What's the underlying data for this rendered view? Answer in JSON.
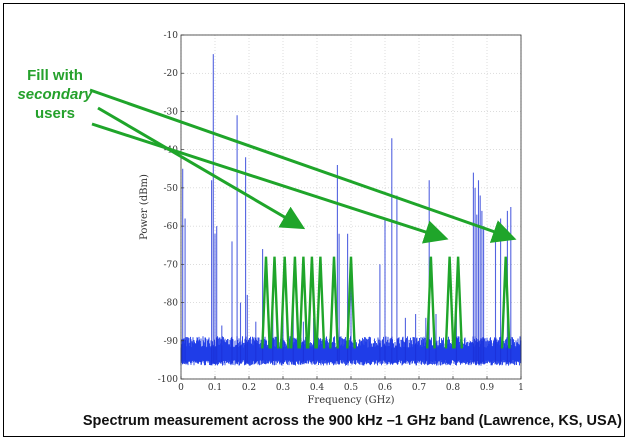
{
  "annotation": {
    "line1": "Fill with",
    "line2": "secondary",
    "line3": "users"
  },
  "caption": "Spectrum measurement across the 900 kHz –1 GHz band  (Lawrence, KS, USA)",
  "colors": {
    "spectrum": "#1a2fd6",
    "noise_floor": "#1f3de8",
    "secondary_users": "#1fa52a",
    "annotation": "#25a12c",
    "axis": "#333333"
  },
  "chart_data": {
    "type": "line",
    "title": "",
    "xlabel": "Frequency (GHz)",
    "ylabel": "Power (dBm)",
    "xlim": [
      0,
      1
    ],
    "ylim": [
      -100,
      -10
    ],
    "xticks": [
      0,
      0.1,
      0.2,
      0.3,
      0.4,
      0.5,
      0.6,
      0.7,
      0.8,
      0.9,
      1
    ],
    "yticks": [
      -10,
      -20,
      -30,
      -40,
      -50,
      -60,
      -70,
      -80,
      -90,
      -100
    ],
    "grid": true,
    "series": [
      {
        "role": "measured_spectrum_peaks",
        "peaks": [
          {
            "x": 0.005,
            "y": -45
          },
          {
            "x": 0.012,
            "y": -58
          },
          {
            "x": 0.09,
            "y": -48
          },
          {
            "x": 0.095,
            "y": -15
          },
          {
            "x": 0.1,
            "y": -62
          },
          {
            "x": 0.105,
            "y": -60
          },
          {
            "x": 0.12,
            "y": -86
          },
          {
            "x": 0.15,
            "y": -64
          },
          {
            "x": 0.165,
            "y": -31
          },
          {
            "x": 0.175,
            "y": -80
          },
          {
            "x": 0.19,
            "y": -42
          },
          {
            "x": 0.195,
            "y": -78
          },
          {
            "x": 0.22,
            "y": -85
          },
          {
            "x": 0.24,
            "y": -66
          },
          {
            "x": 0.27,
            "y": -82
          },
          {
            "x": 0.3,
            "y": -78
          },
          {
            "x": 0.33,
            "y": -76
          },
          {
            "x": 0.36,
            "y": -85
          },
          {
            "x": 0.39,
            "y": -84
          },
          {
            "x": 0.46,
            "y": -44
          },
          {
            "x": 0.465,
            "y": -62
          },
          {
            "x": 0.49,
            "y": -62
          },
          {
            "x": 0.5,
            "y": -70
          },
          {
            "x": 0.585,
            "y": -70
          },
          {
            "x": 0.6,
            "y": -58
          },
          {
            "x": 0.62,
            "y": -37
          },
          {
            "x": 0.635,
            "y": -52
          },
          {
            "x": 0.66,
            "y": -84
          },
          {
            "x": 0.69,
            "y": -83
          },
          {
            "x": 0.72,
            "y": -84
          },
          {
            "x": 0.73,
            "y": -48
          },
          {
            "x": 0.75,
            "y": -83
          },
          {
            "x": 0.81,
            "y": -82
          },
          {
            "x": 0.86,
            "y": -46
          },
          {
            "x": 0.865,
            "y": -50
          },
          {
            "x": 0.87,
            "y": -57
          },
          {
            "x": 0.875,
            "y": -48
          },
          {
            "x": 0.88,
            "y": -52
          },
          {
            "x": 0.885,
            "y": -56
          },
          {
            "x": 0.89,
            "y": -60
          },
          {
            "x": 0.925,
            "y": -62
          },
          {
            "x": 0.94,
            "y": -58
          },
          {
            "x": 0.96,
            "y": -56
          },
          {
            "x": 0.97,
            "y": -55
          }
        ],
        "noise_floor_range": [
          -95,
          -90
        ]
      }
    ],
    "secondary_users": {
      "peak_dbm": -68,
      "floor_dbm": -92,
      "half_width_ghz": 0.011,
      "centers_ghz": [
        0.25,
        0.275,
        0.305,
        0.335,
        0.36,
        0.385,
        0.41,
        0.45,
        0.5,
        0.735,
        0.79,
        0.815,
        0.955
      ]
    },
    "pointer_targets": [
      {
        "x": 0.35,
        "y": -60
      },
      {
        "x": 0.77,
        "y": -63
      },
      {
        "x": 0.97,
        "y": -63
      }
    ]
  }
}
